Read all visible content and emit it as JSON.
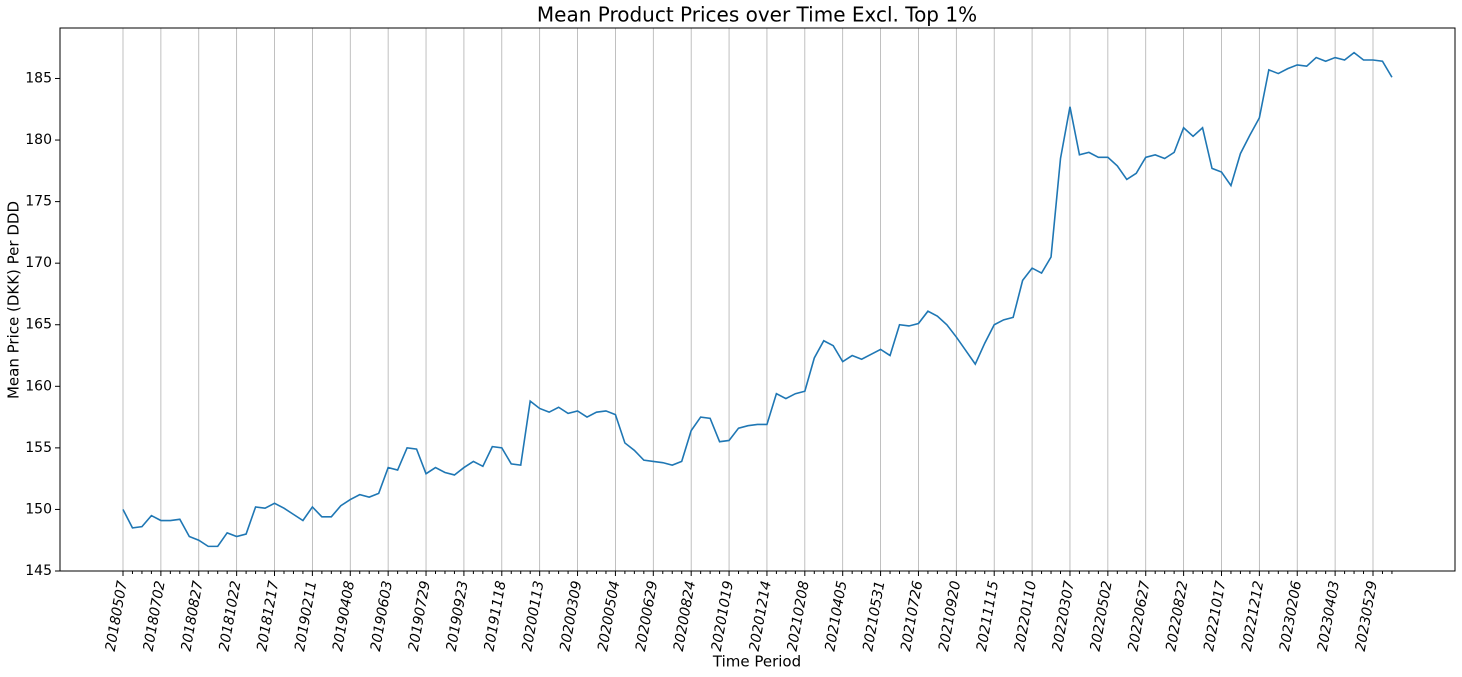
{
  "chart_data": {
    "type": "line",
    "title": "Mean Product Prices over Time Excl. Top 1%",
    "x_label": "Time Period",
    "y_label": "Mean Price (DKK) Per DDD",
    "color": "#1f77b4",
    "grid": true,
    "ylim": [
      145,
      189.1
    ],
    "yticks": [
      145,
      150,
      155,
      160,
      165,
      170,
      175,
      180,
      185
    ],
    "categories": [
      "20180507",
      null,
      null,
      null,
      "20180702",
      null,
      null,
      null,
      "20180827",
      null,
      null,
      null,
      "20181022",
      null,
      null,
      null,
      "20181217",
      null,
      null,
      null,
      "20190211",
      null,
      null,
      null,
      "20190408",
      null,
      null,
      null,
      "20190603",
      null,
      null,
      null,
      "20190729",
      null,
      null,
      null,
      "20190923",
      null,
      null,
      null,
      "20191118",
      null,
      null,
      null,
      "20200113",
      null,
      null,
      null,
      "20200309",
      null,
      null,
      null,
      "20200504",
      null,
      null,
      null,
      "20200629",
      null,
      null,
      null,
      "20200824",
      null,
      null,
      null,
      "20201019",
      null,
      null,
      null,
      "20201214",
      null,
      null,
      null,
      "20210208",
      null,
      null,
      null,
      "20210405",
      null,
      null,
      null,
      "20210531",
      null,
      null,
      null,
      "20210726",
      null,
      null,
      null,
      "20210920",
      null,
      null,
      null,
      "20211115",
      null,
      null,
      null,
      "20220110",
      null,
      null,
      null,
      "20220307",
      null,
      null,
      null,
      "20220502",
      null,
      null,
      null,
      "20220627",
      null,
      null,
      null,
      "20220822",
      null,
      null,
      null,
      "20221017",
      null,
      null,
      null,
      "20221212",
      null,
      null,
      null,
      "20230206",
      null,
      null,
      null,
      "20230403",
      null,
      null,
      null,
      "20230529",
      null,
      null
    ],
    "values": [
      150.0,
      148.5,
      148.6,
      149.5,
      149.1,
      149.1,
      149.2,
      147.8,
      147.5,
      147.0,
      147.0,
      148.1,
      147.8,
      148.0,
      150.2,
      150.1,
      150.5,
      150.1,
      149.6,
      149.1,
      150.2,
      149.4,
      149.4,
      150.3,
      150.8,
      151.2,
      151.0,
      151.3,
      153.4,
      153.2,
      155.0,
      154.9,
      152.9,
      153.4,
      153.0,
      152.8,
      153.4,
      153.9,
      153.5,
      155.1,
      155.0,
      153.7,
      153.6,
      158.8,
      158.2,
      157.9,
      158.3,
      157.8,
      158.0,
      157.5,
      157.9,
      158.0,
      157.7,
      155.4,
      154.8,
      154.0,
      153.9,
      153.8,
      153.6,
      153.9,
      156.4,
      157.5,
      157.4,
      155.5,
      155.6,
      156.6,
      156.8,
      156.9,
      156.9,
      159.4,
      159.0,
      159.4,
      159.6,
      162.3,
      163.7,
      163.3,
      162.0,
      162.5,
      162.2,
      162.6,
      163.0,
      162.5,
      165.0,
      164.9,
      165.1,
      166.1,
      165.7,
      165.0,
      164.0,
      162.9,
      161.8,
      163.5,
      165.0,
      165.4,
      165.6,
      168.6,
      169.6,
      169.2,
      170.5,
      178.5,
      182.7,
      178.8,
      179.0,
      178.6,
      178.6,
      177.9,
      176.8,
      177.3,
      178.6,
      178.8,
      178.5,
      179.0,
      181.0,
      180.3,
      181.0,
      177.7,
      177.4,
      176.3,
      178.9,
      180.4,
      181.8,
      185.7,
      185.4,
      185.8,
      186.1,
      186.0,
      186.7,
      186.4,
      186.7,
      186.5,
      187.1,
      186.5,
      186.5,
      186.4,
      185.1
    ]
  }
}
